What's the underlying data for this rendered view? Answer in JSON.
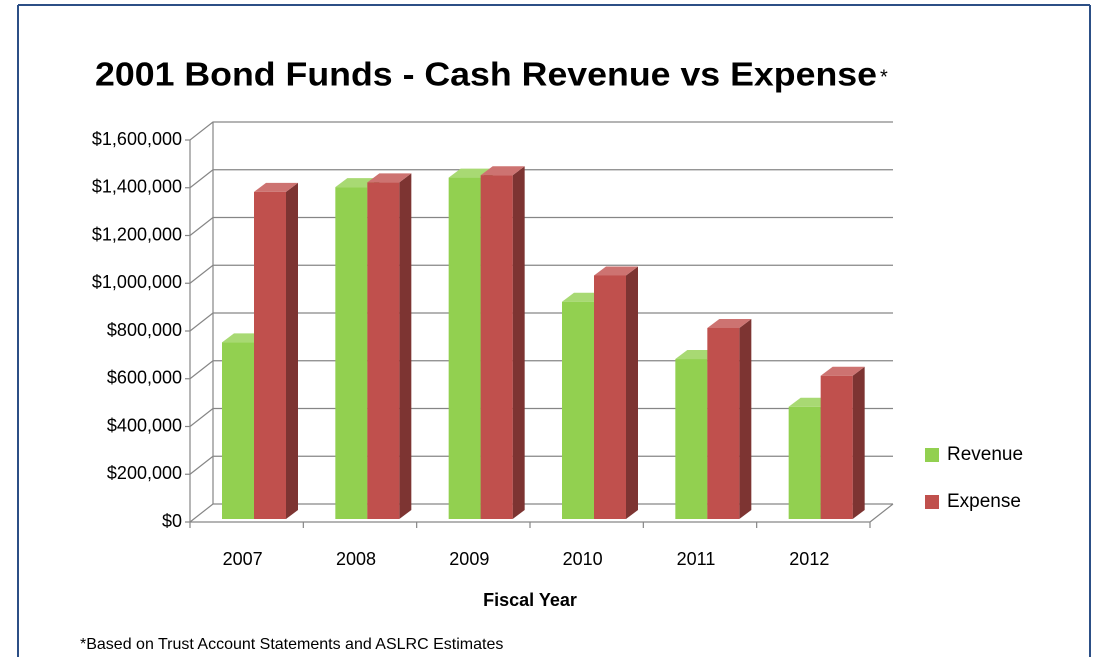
{
  "chart_data": {
    "type": "bar3d",
    "title": "2001 Bond Funds - Cash Revenue vs Expense",
    "title_suffix": "*",
    "x_label": "Fiscal Year",
    "footnote": "*Based on Trust Account Statements and ASLRC Estimates",
    "categories": [
      "2007",
      "2008",
      "2009",
      "2010",
      "2011",
      "2012"
    ],
    "series": [
      {
        "name": "Revenue",
        "color": "#92d050",
        "values": [
          740000,
          1390000,
          1430000,
          910000,
          670000,
          470000
        ]
      },
      {
        "name": "Expense",
        "color": "#c0504d",
        "values": [
          1370000,
          1410000,
          1440000,
          1020000,
          800000,
          600000
        ]
      }
    ],
    "ylim": [
      0,
      1600000
    ],
    "yticks": [
      {
        "value": 0,
        "label": "$0"
      },
      {
        "value": 200000,
        "label": "$200,000"
      },
      {
        "value": 400000,
        "label": "$400,000"
      },
      {
        "value": 600000,
        "label": "$600,000"
      },
      {
        "value": 800000,
        "label": "$800,000"
      },
      {
        "value": 1000000,
        "label": "$1,000,000"
      },
      {
        "value": 1200000,
        "label": "$1,200,000"
      },
      {
        "value": 1400000,
        "label": "$1,400,000"
      },
      {
        "value": 1600000,
        "label": "$1,600,000"
      }
    ],
    "grid": true,
    "legend": "right"
  }
}
